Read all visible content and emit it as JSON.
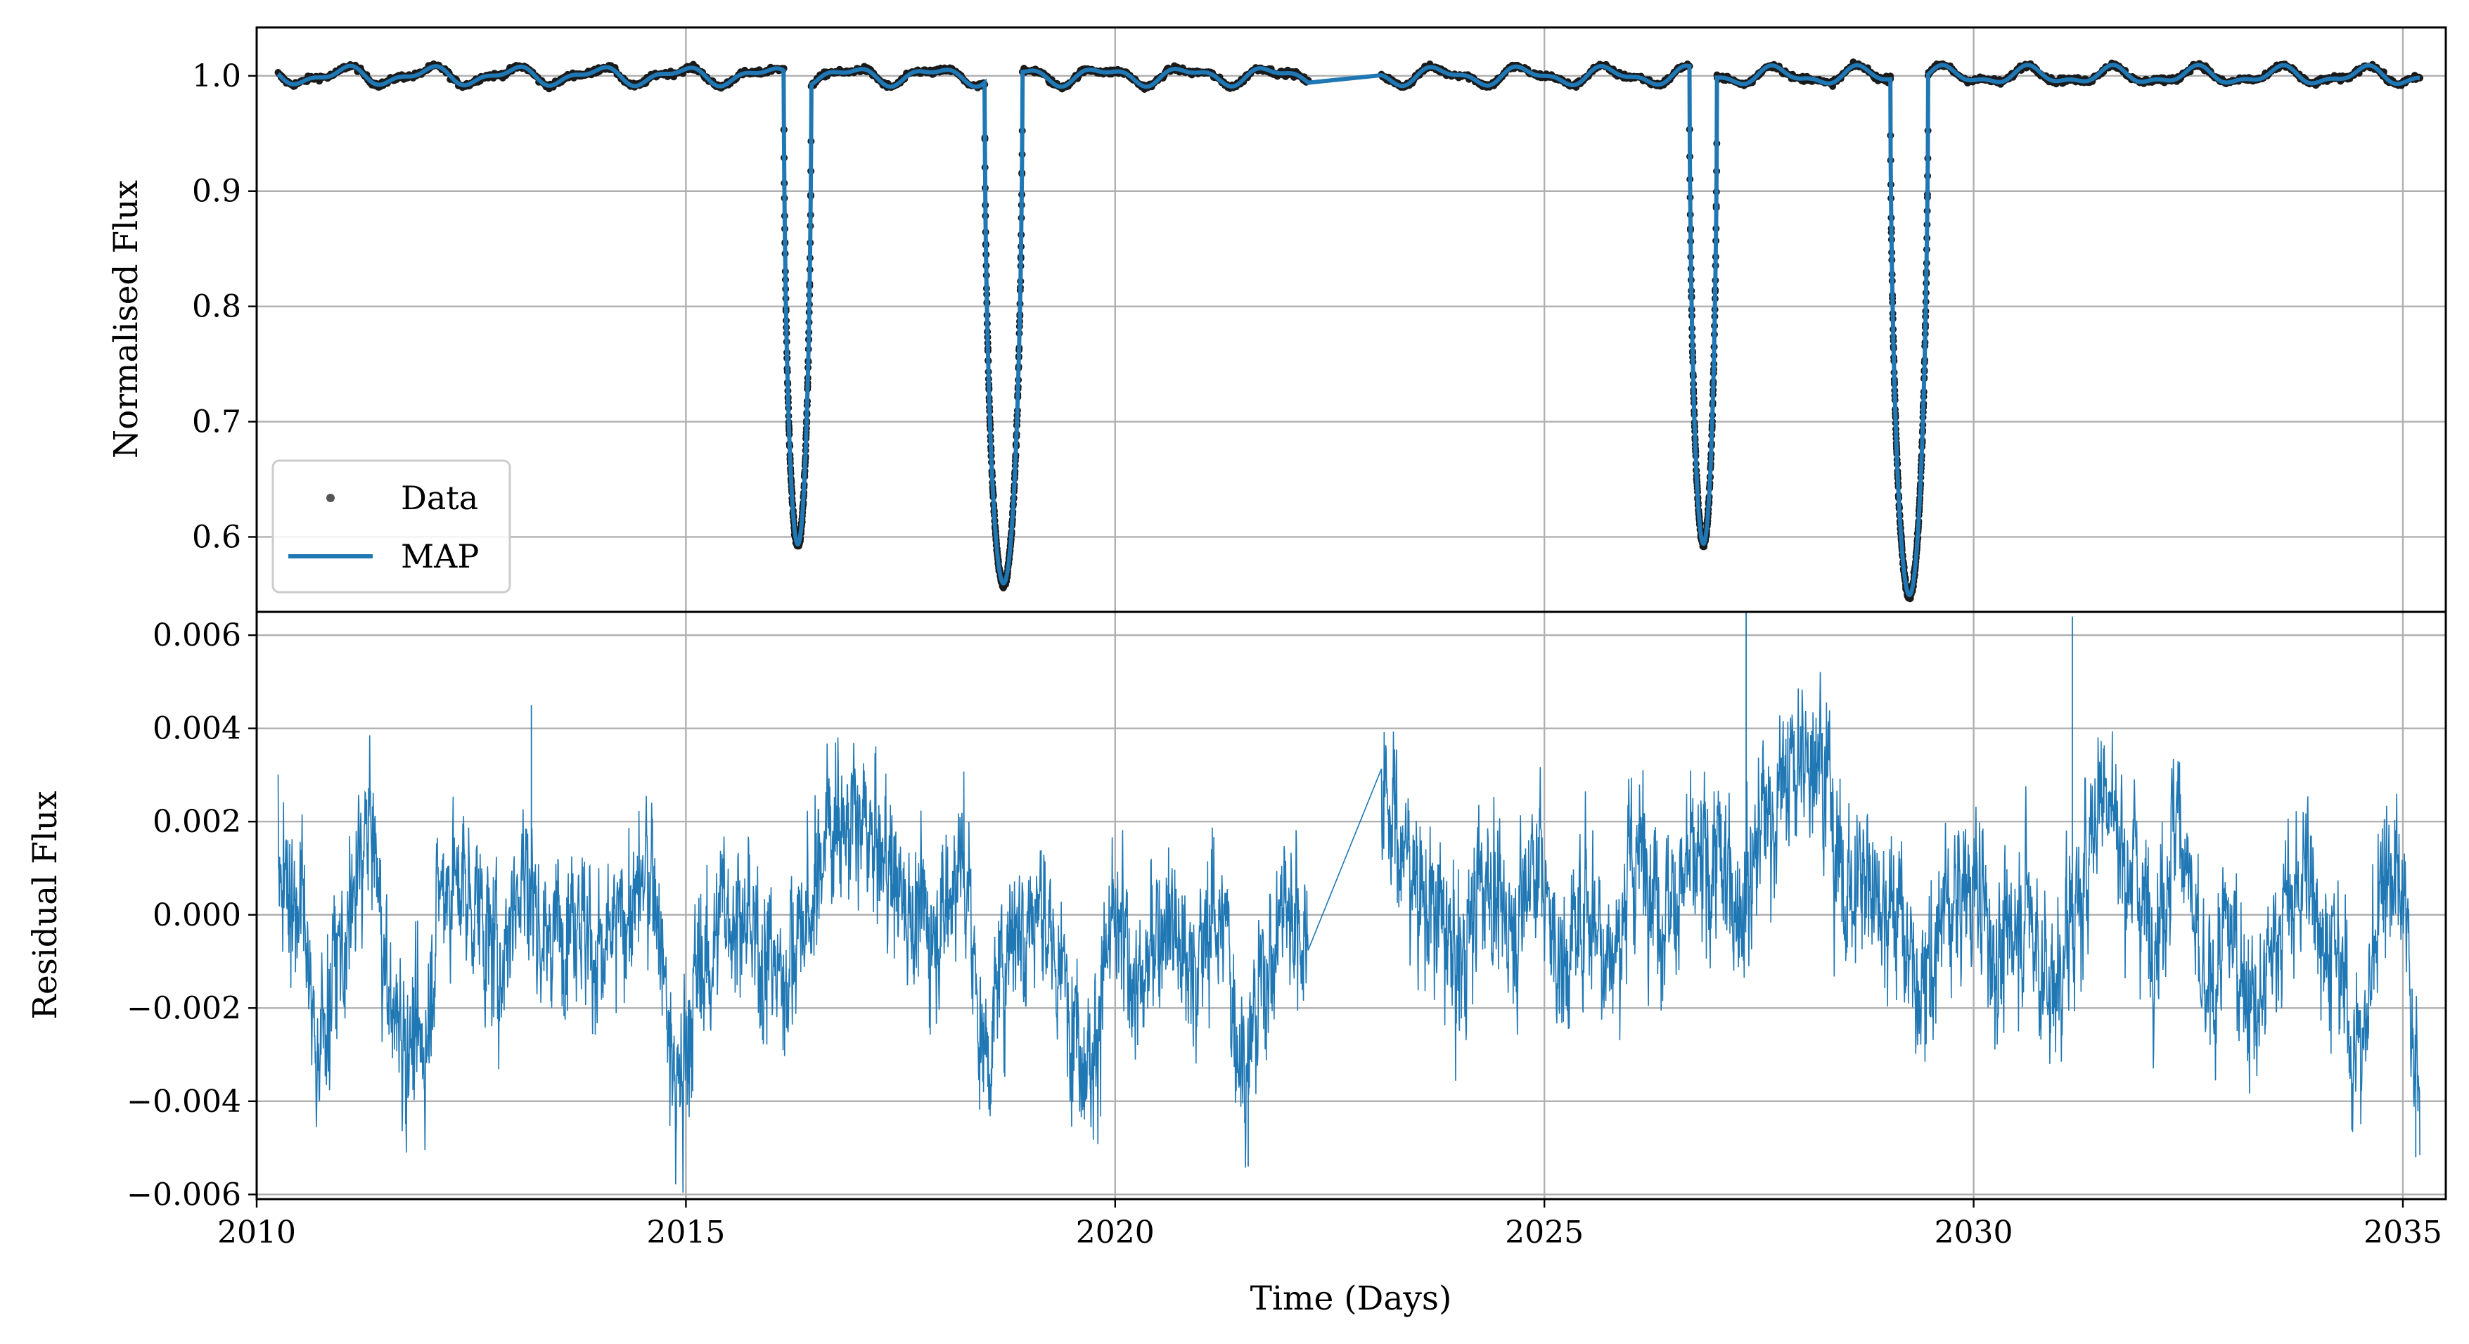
{
  "chart_data": [
    {
      "panel": "top",
      "type": "line",
      "title": "",
      "xlabel": "",
      "ylabel": "Normalised Flux",
      "xlim": [
        2010,
        2035.5
      ],
      "ylim": [
        0.535,
        1.042
      ],
      "grid": true,
      "x_ticks": [
        2010,
        2015,
        2020,
        2025,
        2030,
        2035
      ],
      "y_ticks": [
        0.6,
        0.7,
        0.8,
        0.9,
        1.0
      ],
      "y_tick_labels": [
        "0.6",
        "0.7",
        "0.8",
        "0.9",
        "1.0"
      ],
      "legend": {
        "placement": "lower-left",
        "entries": [
          {
            "label": "Data",
            "marker": "dot",
            "color": "#555555"
          },
          {
            "label": "MAP",
            "marker": "line",
            "color": "#1f77b4"
          }
        ]
      },
      "baseline": 1.0,
      "modulation_amplitude": 0.009,
      "modulation_period": 1.0,
      "data_gap": [
        2022.25,
        2023.1
      ],
      "t_start": 2010.25,
      "t_end": 2035.2,
      "dips": [
        {
          "center": 2016.3,
          "depth_min": 0.6,
          "half_width": 0.16
        },
        {
          "center": 2018.7,
          "depth_min": 0.555,
          "half_width": 0.22
        },
        {
          "center": 2026.85,
          "depth_min": 0.593,
          "half_width": 0.16
        },
        {
          "center": 2029.25,
          "depth_min": 0.555,
          "half_width": 0.22
        }
      ],
      "series": [
        {
          "name": "Data",
          "style": "points",
          "color": "#1a1a1a"
        },
        {
          "name": "MAP",
          "style": "line",
          "color": "#1f77b4"
        }
      ]
    },
    {
      "panel": "bottom",
      "type": "line",
      "title": "",
      "xlabel": "Time (Days)",
      "ylabel": "Residual Flux",
      "xlim": [
        2010,
        2035.5
      ],
      "ylim": [
        -0.0061,
        0.0065
      ],
      "grid": true,
      "x_ticks": [
        2010,
        2015,
        2020,
        2025,
        2030,
        2035
      ],
      "x_tick_labels": [
        "2010",
        "2015",
        "2020",
        "2025",
        "2030",
        "2035"
      ],
      "y_ticks": [
        -0.006,
        -0.004,
        -0.002,
        0.0,
        0.002,
        0.004,
        0.006
      ],
      "y_tick_labels": [
        "−0.006",
        "−0.004",
        "−0.002",
        "0.000",
        "0.002",
        "0.004",
        "0.006"
      ],
      "series": [
        {
          "color": "#1f77b4",
          "envelope": {
            "x": [
              2010.25,
              2010.5,
              2010.7,
              2011.0,
              2011.3,
              2011.6,
              2011.9,
              2012.2,
              2012.5,
              2012.8,
              2013.1,
              2013.4,
              2013.7,
              2014.0,
              2014.3,
              2014.6,
              2014.9,
              2015.2,
              2015.5,
              2015.8,
              2016.1,
              2016.4,
              2016.7,
              2017.0,
              2017.3,
              2017.6,
              2017.9,
              2018.2,
              2018.5,
              2018.8,
              2019.1,
              2019.4,
              2019.7,
              2020.0,
              2020.3,
              2020.6,
              2020.9,
              2021.2,
              2021.5,
              2021.8,
              2022.0,
              2022.25,
              2023.1,
              2023.4,
              2023.7,
              2024.0,
              2024.3,
              2024.6,
              2024.9,
              2025.2,
              2025.5,
              2025.8,
              2026.1,
              2026.4,
              2026.7,
              2027.0,
              2027.3,
              2027.6,
              2027.9,
              2028.2,
              2028.5,
              2028.8,
              2029.1,
              2029.4,
              2029.7,
              2030.0,
              2030.3,
              2030.6,
              2030.9,
              2031.2,
              2031.5,
              2031.8,
              2032.1,
              2032.4,
              2032.7,
              2033.0,
              2033.3,
              2033.6,
              2033.9,
              2034.2,
              2034.5,
              2034.8,
              2035.0,
              2035.2
            ],
            "y": [
              0.0012,
              0.0002,
              -0.0028,
              -0.0008,
              0.0018,
              -0.0022,
              -0.003,
              0.0008,
              0.0004,
              -0.001,
              0.0009,
              -0.0005,
              0.0003,
              -0.001,
              0.0,
              0.0008,
              -0.0038,
              -0.001,
              0.0002,
              -0.0006,
              -0.0012,
              -0.0002,
              0.0022,
              0.0018,
              0.0012,
              0.0002,
              -0.0002,
              0.001,
              -0.0028,
              -0.0002,
              0.0002,
              -0.0015,
              -0.003,
              -0.0004,
              -0.0015,
              0.0002,
              -0.0012,
              0.0001,
              -0.003,
              -0.001,
              0.0004,
              -0.0006,
              0.003,
              0.0012,
              0.0,
              -0.001,
              0.0008,
              -0.0002,
              0.0012,
              -0.001,
              0.0002,
              -0.0008,
              0.0014,
              0.0002,
              0.0008,
              0.001,
              0.0005,
              0.0022,
              0.003,
              0.0038,
              0.0005,
              0.0008,
              0.0001,
              -0.0018,
              0.0002,
              0.0006,
              -0.001,
              0.0002,
              -0.0016,
              0.0,
              0.0028,
              0.0012,
              -0.0002,
              0.002,
              -0.002,
              -0.0004,
              -0.0022,
              0.0,
              0.0008,
              -0.001,
              -0.003,
              0.0012,
              0.0002,
              -0.004
            ]
          },
          "noise_amplitude": 0.0012,
          "spikes": [
            {
              "x": 2013.2,
              "y": 0.0045
            },
            {
              "x": 2027.35,
              "y": 0.0065
            },
            {
              "x": 2031.15,
              "y": 0.0064
            },
            {
              "x": 2021.55,
              "y": -0.0054
            },
            {
              "x": 2035.15,
              "y": -0.0052
            }
          ]
        }
      ]
    }
  ]
}
